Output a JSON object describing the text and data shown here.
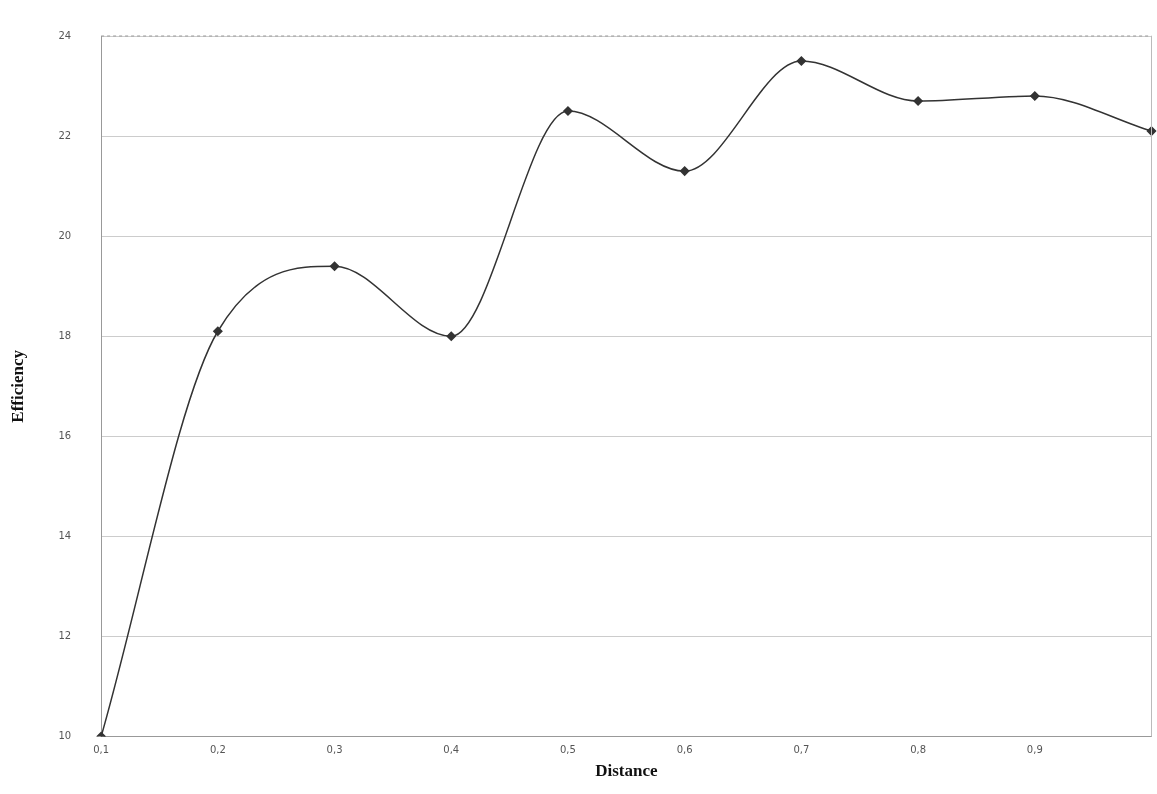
{
  "chart_data": {
    "type": "line",
    "xlabel": "Distance",
    "ylabel": "Efficiency",
    "categories": [
      "0,1",
      "0,2",
      "0,3",
      "0,4",
      "0,5",
      "0,6",
      "0,7",
      "0,8",
      "0,9",
      null
    ],
    "series": [
      {
        "color": "#333333",
        "values": [
          10.0,
          18.1,
          19.4,
          18.0,
          22.5,
          21.3,
          23.5,
          22.7,
          22.8,
          22.1
        ]
      }
    ],
    "ylim": [
      10,
      24
    ],
    "yticks": [
      10,
      12,
      14,
      16,
      18,
      20,
      22,
      24
    ],
    "grid": "y",
    "legend": false,
    "marker": "diamond",
    "line_style": "solid"
  }
}
